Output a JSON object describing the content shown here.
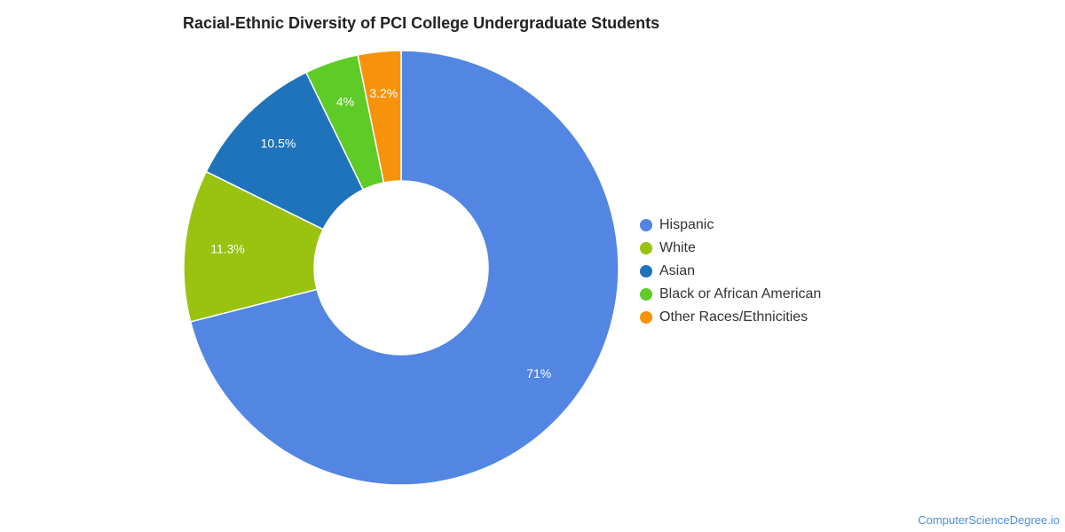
{
  "chart_data": {
    "type": "pie",
    "title": "Racial-Ethnic Diversity of PCI College Undergraduate Students",
    "categories": [
      "Hispanic",
      "White",
      "Asian",
      "Black or African American",
      "Other Races/Ethnicities"
    ],
    "values": [
      71,
      11.3,
      10.5,
      4,
      3.2
    ],
    "value_labels": [
      "71%",
      "11.3%",
      "10.5%",
      "4%",
      "3.2%"
    ],
    "colors": [
      "#5286e2",
      "#99c30f",
      "#1f73bb",
      "#5ecb26",
      "#f6930b"
    ],
    "donut": true,
    "legend_position": "right"
  },
  "footer": {
    "source": "ComputerScienceDegree.io"
  }
}
